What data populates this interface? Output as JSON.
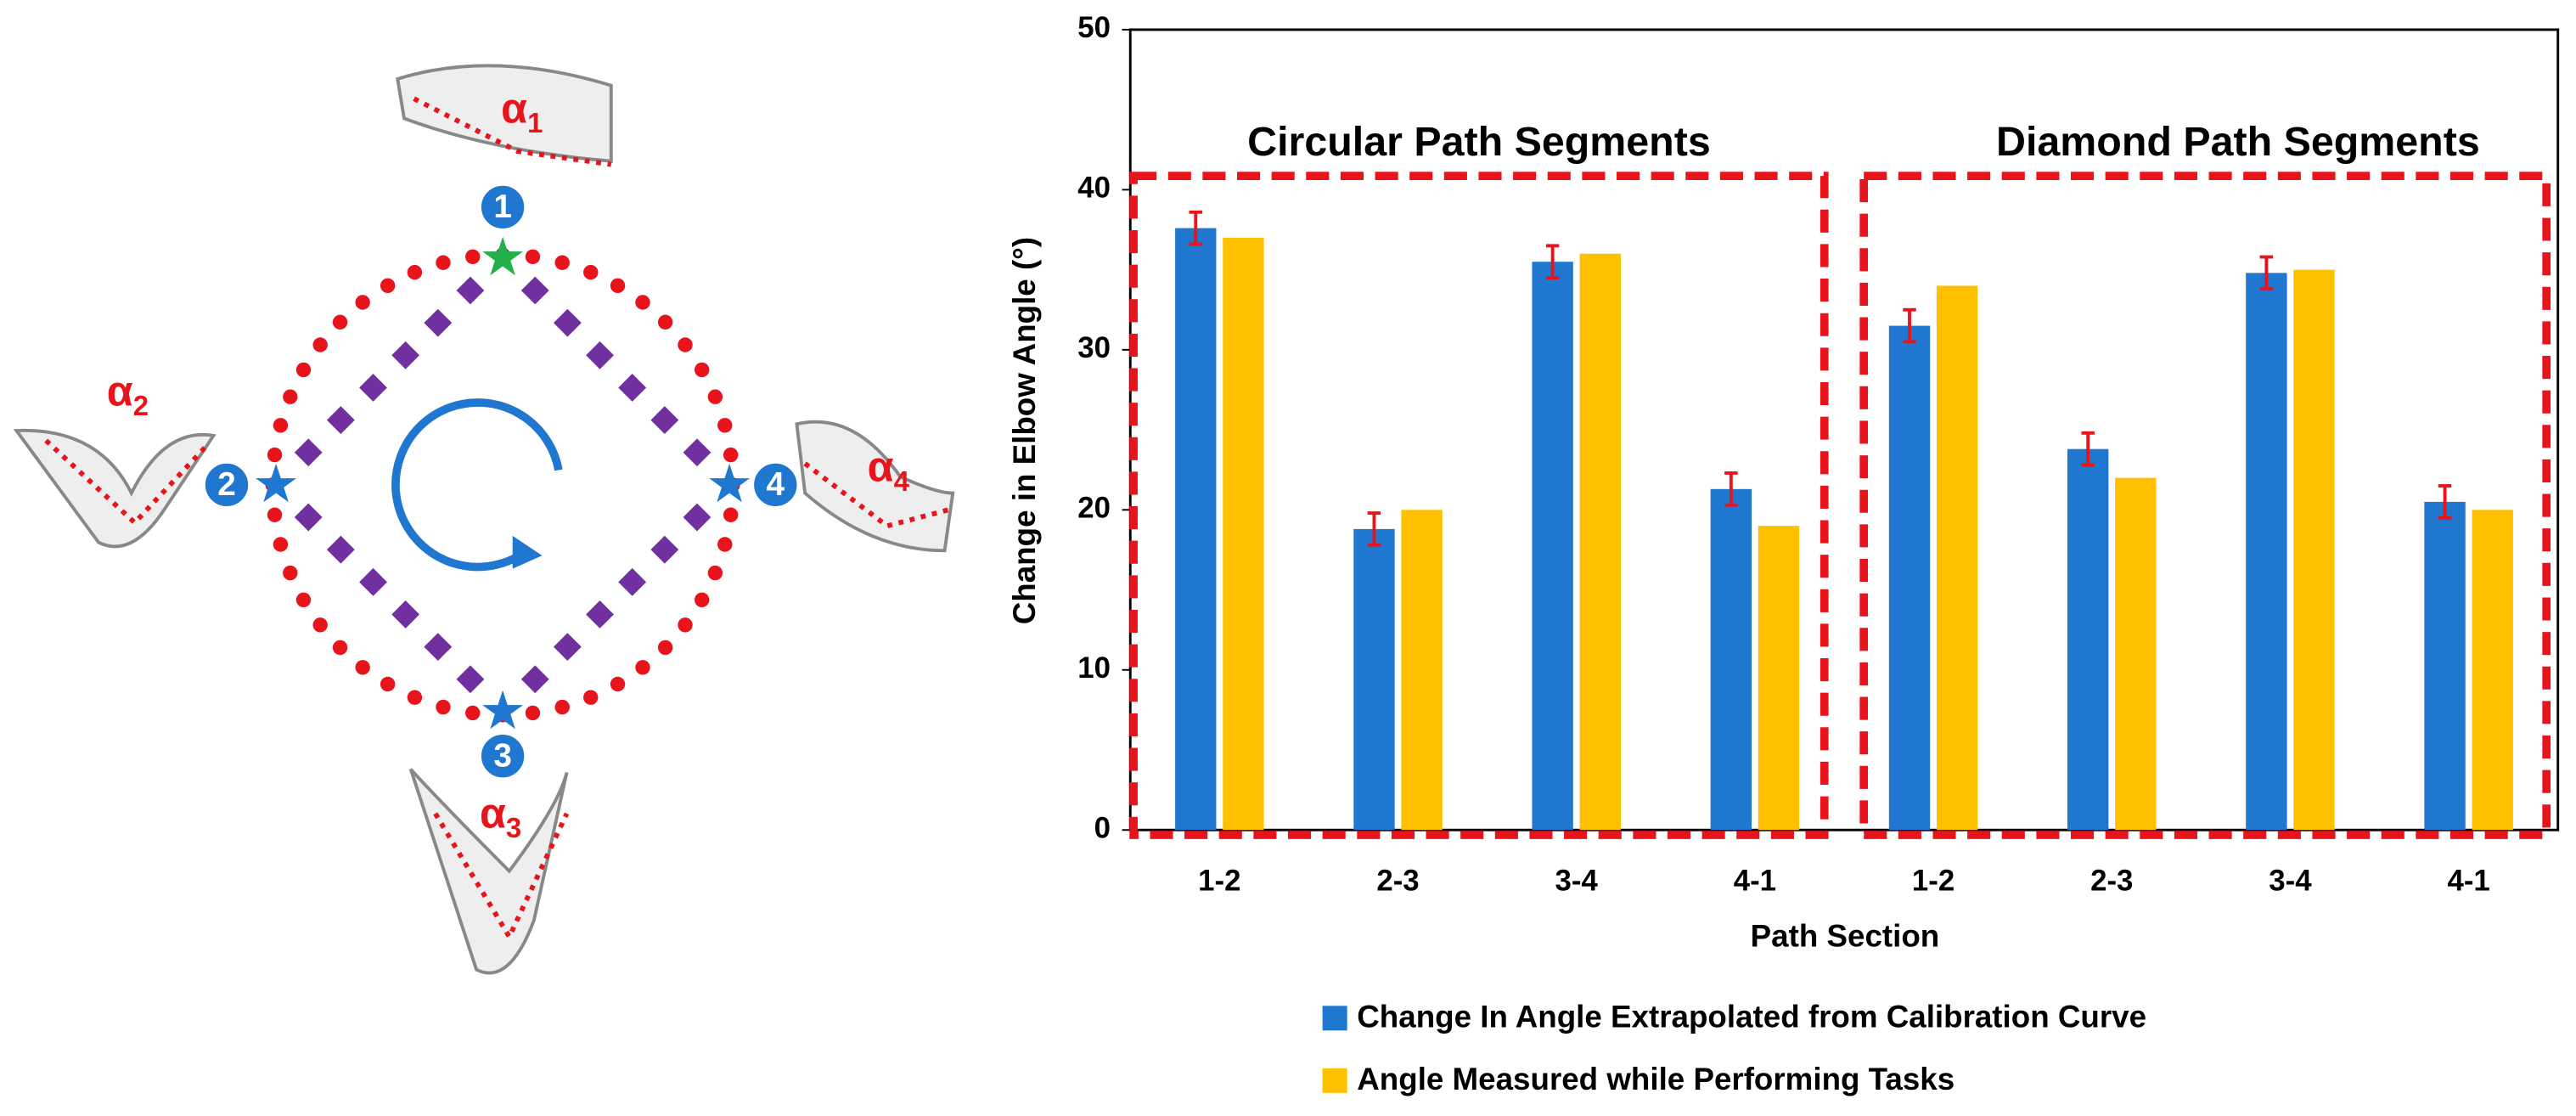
{
  "diagram": {
    "points": [
      "1",
      "2",
      "3",
      "4"
    ],
    "angles": [
      {
        "symbol": "α",
        "index": "1"
      },
      {
        "symbol": "α",
        "index": "2"
      },
      {
        "symbol": "α",
        "index": "3"
      },
      {
        "symbol": "α",
        "index": "4"
      }
    ]
  },
  "chart_data": {
    "type": "bar",
    "y_label": "Change in Elbow Angle (°)",
    "x_label": "Path Section",
    "groups": [
      {
        "name": "Circular Path Segments",
        "categories": [
          0,
          1,
          2,
          3
        ]
      },
      {
        "name": "Diamond Path Segments",
        "categories": [
          4,
          5,
          6,
          7
        ]
      }
    ],
    "categories": [
      "1-2",
      "2-3",
      "3-4",
      "4-1",
      "1-2",
      "2-3",
      "3-4",
      "4-1"
    ],
    "series": [
      {
        "name": "Change In Angle Extrapolated from Calibration Curve",
        "color": "#1f77d0",
        "values": [
          37.6,
          18.8,
          35.5,
          21.3,
          31.5,
          23.8,
          34.8,
          20.5
        ],
        "errors": [
          1,
          1,
          1,
          1,
          1,
          1,
          1,
          1
        ],
        "error_color": "#e8141c"
      },
      {
        "name": "Angle Measured while Performing Tasks",
        "color": "#ffc000",
        "values": [
          37,
          20,
          36,
          19,
          34,
          22,
          35,
          20
        ]
      }
    ],
    "ylim": [
      0,
      50
    ],
    "yticks": [
      0,
      10,
      20,
      30,
      40,
      50
    ],
    "group_box_color": "#e8141c",
    "legend": "bottom"
  }
}
